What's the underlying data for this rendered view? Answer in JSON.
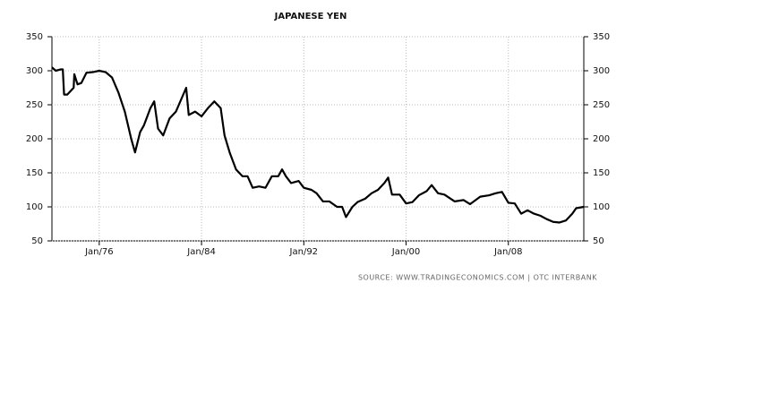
{
  "chart_data": {
    "type": "line",
    "title": "JAPANESE YEN",
    "source": "SOURCE:  WWW.TRADINGECONOMICS.COM  |  OTC INTERBANK",
    "color": "#000000",
    "grid": true,
    "x": [
      1972.3,
      1972.6,
      1973.0,
      1973.15,
      1973.25,
      1973.5,
      1974.0,
      1974.05,
      1974.3,
      1974.6,
      1975.0,
      1975.5,
      1976.0,
      1976.5,
      1977.0,
      1977.5,
      1978.0,
      1978.5,
      1978.8,
      1979.2,
      1979.5,
      1980.0,
      1980.3,
      1980.6,
      1981.0,
      1981.5,
      1982.0,
      1982.8,
      1983.0,
      1983.5,
      1984.0,
      1984.5,
      1985.0,
      1985.5,
      1985.8,
      1986.2,
      1986.7,
      1987.2,
      1987.6,
      1988.0,
      1988.5,
      1989.0,
      1989.5,
      1990.0,
      1990.3,
      1990.6,
      1991.0,
      1991.6,
      1992.0,
      1992.6,
      1993.0,
      1993.5,
      1994.0,
      1994.6,
      1995.0,
      1995.3,
      1995.8,
      1996.2,
      1996.8,
      1997.3,
      1997.8,
      1998.3,
      1998.6,
      1998.9,
      1999.5,
      2000.0,
      2000.5,
      2001.0,
      2001.6,
      2002.0,
      2002.5,
      2003.0,
      2003.8,
      2004.5,
      2005.0,
      2005.8,
      2006.5,
      2007.0,
      2007.5,
      2008.0,
      2008.5,
      2009.0,
      2009.5,
      2010.0,
      2010.5,
      2011.0,
      2011.5,
      2012.0,
      2012.5,
      2013.0,
      2013.3,
      2013.9
    ],
    "values": [
      305,
      300,
      302,
      302,
      265,
      265,
      275,
      295,
      280,
      282,
      297,
      298,
      300,
      298,
      290,
      268,
      240,
      200,
      180,
      210,
      220,
      245,
      255,
      215,
      205,
      230,
      240,
      275,
      235,
      240,
      233,
      245,
      255,
      245,
      205,
      180,
      155,
      145,
      145,
      128,
      130,
      128,
      145,
      145,
      155,
      145,
      135,
      138,
      128,
      125,
      120,
      108,
      108,
      100,
      100,
      85,
      100,
      107,
      112,
      120,
      125,
      135,
      143,
      118,
      118,
      105,
      107,
      117,
      123,
      132,
      120,
      118,
      108,
      110,
      104,
      115,
      117,
      120,
      122,
      106,
      105,
      90,
      95,
      90,
      87,
      82,
      78,
      77,
      80,
      90,
      98,
      100
    ],
    "xlim": [
      1972.3,
      2013.9
    ],
    "xticks": [
      {
        "value": 1976,
        "label": "Jan/76"
      },
      {
        "value": 1984,
        "label": "Jan/84"
      },
      {
        "value": 1992,
        "label": "Jan/92"
      },
      {
        "value": 2000,
        "label": "Jan/00"
      },
      {
        "value": 2008,
        "label": "Jan/08"
      }
    ],
    "ylim": [
      50,
      350
    ],
    "yticks": [
      50,
      100,
      150,
      200,
      250,
      300,
      350
    ]
  }
}
